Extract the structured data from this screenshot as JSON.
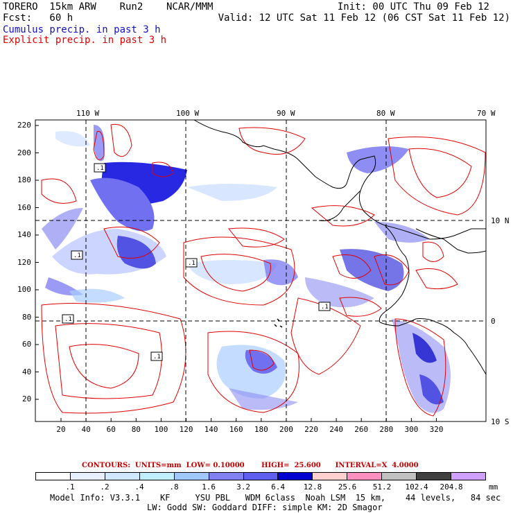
{
  "header": {
    "line1_left": "TORERO  15km ARW    Run2    NCAR/MMM",
    "line1_right": "Init: 00 UTC Thu 09 Feb 12",
    "line2_left": "Fcst:   60 h",
    "line2_right": "Valid: 12 UTC Sat 11 Feb 12 (06 CST Sat 11 Feb 12)",
    "cumulus": "Cumulus precip. in past 3 h",
    "explicit": "Explicit precip. in past 3 h"
  },
  "axes": {
    "lon_labels": [
      "110 W",
      "100 W",
      "90 W",
      "80 W",
      "70 W"
    ],
    "lat_labels": [
      "10 N",
      "0",
      "10 S"
    ],
    "x_ticks": [
      "20",
      "40",
      "60",
      "80",
      "100",
      "120",
      "140",
      "160",
      "180",
      "200",
      "220",
      "240",
      "260",
      "280",
      "300",
      "320"
    ],
    "y_ticks": [
      "220",
      "200",
      "180",
      "160",
      "140",
      "120",
      "100",
      "80",
      "60",
      "40",
      "20"
    ]
  },
  "contours": {
    "text": "CONTOURS:  UNITS=mm  LOW= 0.10000       HIGH=  25.600      INTERVAL=X  4.0000"
  },
  "legend": {
    "colors": [
      "#ffffff",
      "#e8f0ff",
      "#d0e8ff",
      "#c0f0ff",
      "#a0c8ff",
      "#8080f0",
      "#6060f0",
      "#0000d0",
      "#ffd0d0",
      "#ff90c0",
      "#c0c0c0",
      "#404040",
      "#d0a0ff"
    ],
    "labels": [
      ".1",
      ".2",
      ".4",
      ".8",
      "1.6",
      "3.2",
      "6.4",
      "12.8",
      "25.6",
      "51.2",
      "102.4",
      "204.8"
    ],
    "unit": "mm"
  },
  "model_info": {
    "line1": "Model Info: V3.3.1    KF     YSU PBL   WDM 6class  Noah LSM  15 km,    44 levels,   84 sec",
    "line2": "LW: Godd SW: Goddard DIFF: simple KM: 2D Smagor"
  },
  "map_labels": [
    ".1",
    ".1",
    ".1",
    ".1",
    ".1",
    ".1"
  ]
}
